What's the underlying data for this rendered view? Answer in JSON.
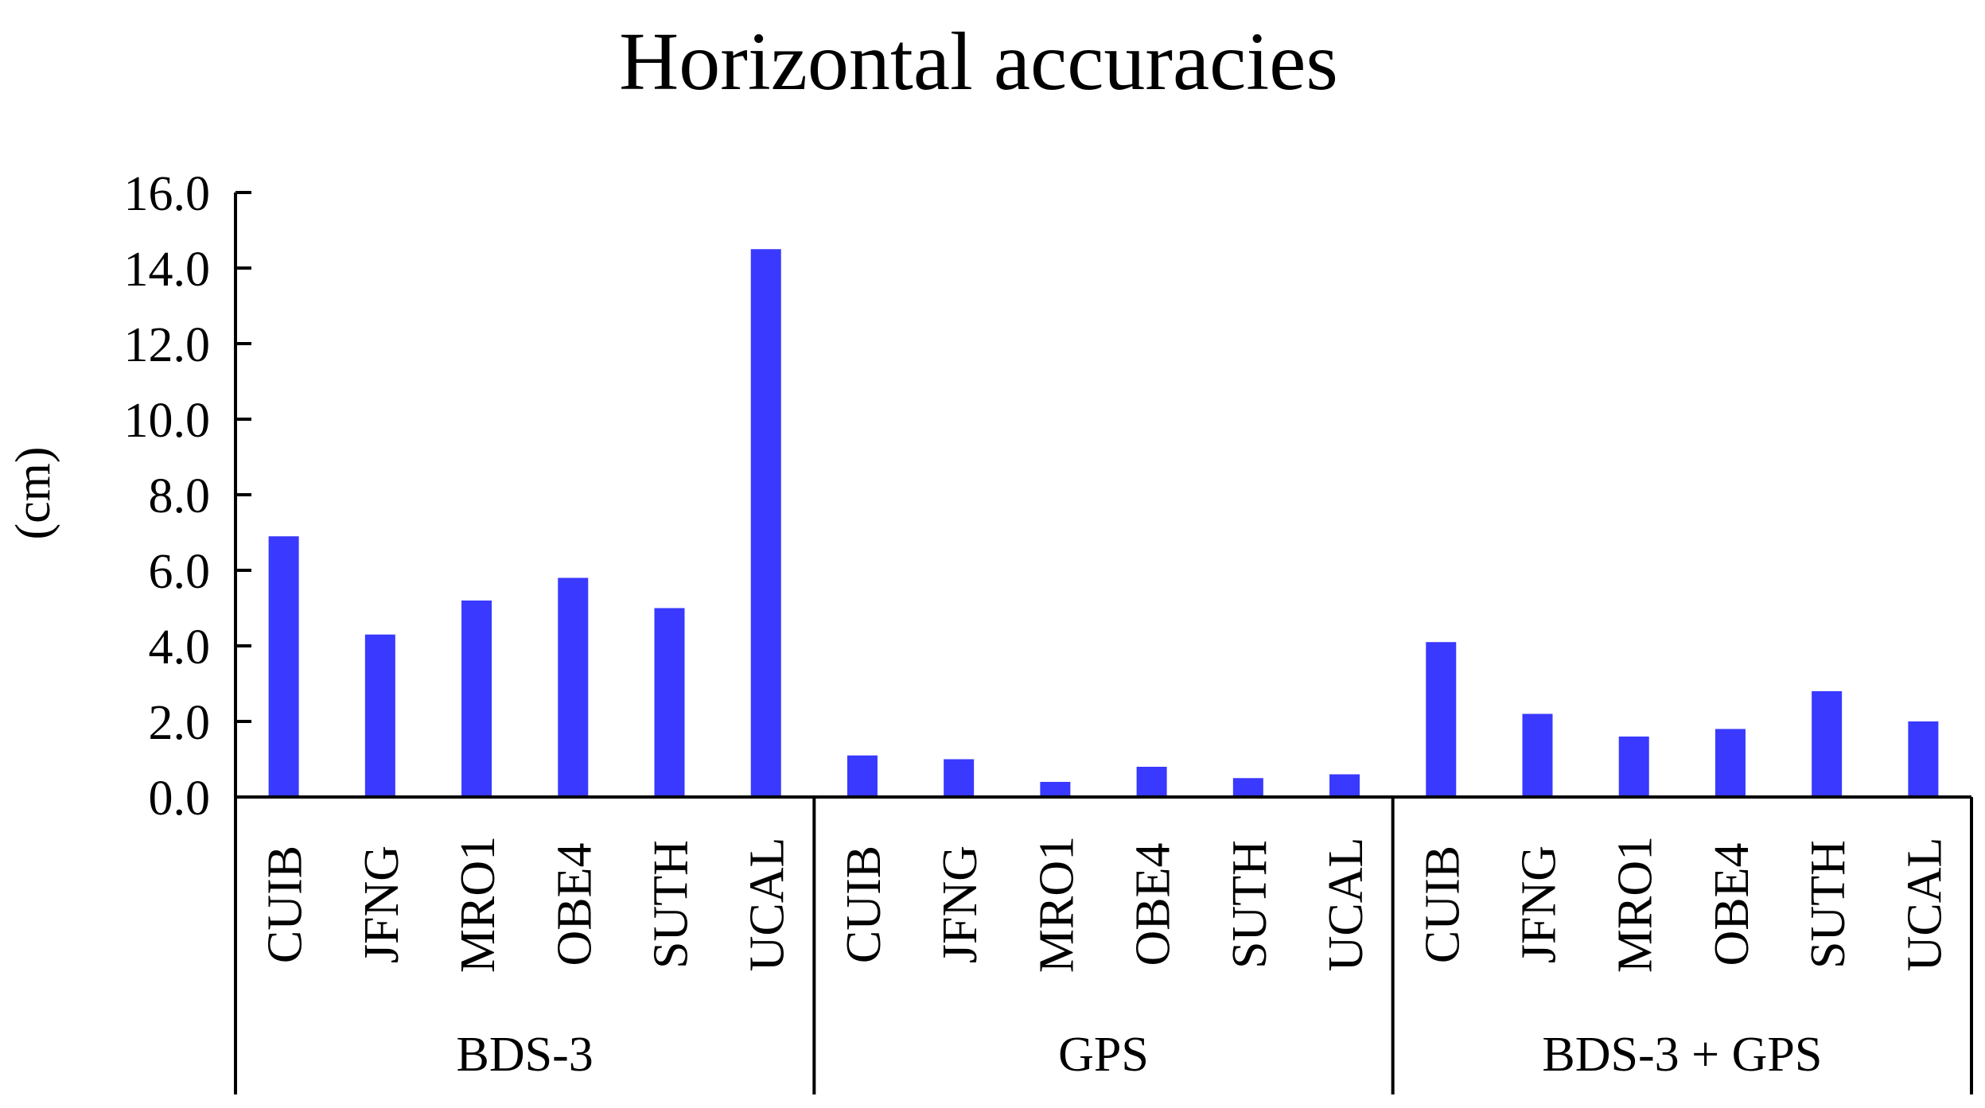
{
  "chart_data": {
    "type": "bar",
    "title": "Horizontal accuracies",
    "ylabel": "(cm)",
    "xlabel": "",
    "ylim": [
      0,
      16
    ],
    "yticks": [
      "0.0",
      "2.0",
      "4.0",
      "6.0",
      "8.0",
      "10.0",
      "12.0",
      "14.0",
      "16.0"
    ],
    "grid": false,
    "legend": "none",
    "bar_color": "#3939FF",
    "groups": [
      {
        "name": "BDS-3",
        "categories": [
          "CUIB",
          "JFNG",
          "MRO1",
          "OBE4",
          "SUTH",
          "UCAL"
        ],
        "values": [
          6.9,
          4.3,
          5.2,
          5.8,
          5.0,
          14.5
        ]
      },
      {
        "name": "GPS",
        "categories": [
          "CUIB",
          "JFNG",
          "MRO1",
          "OBE4",
          "SUTH",
          "UCAL"
        ],
        "values": [
          1.1,
          1.0,
          0.4,
          0.8,
          0.5,
          0.6
        ]
      },
      {
        "name": "BDS-3 + GPS",
        "categories": [
          "CUIB",
          "JFNG",
          "MRO1",
          "OBE4",
          "SUTH",
          "UCAL"
        ],
        "values": [
          4.1,
          2.2,
          1.6,
          1.8,
          2.8,
          2.0
        ]
      }
    ]
  }
}
